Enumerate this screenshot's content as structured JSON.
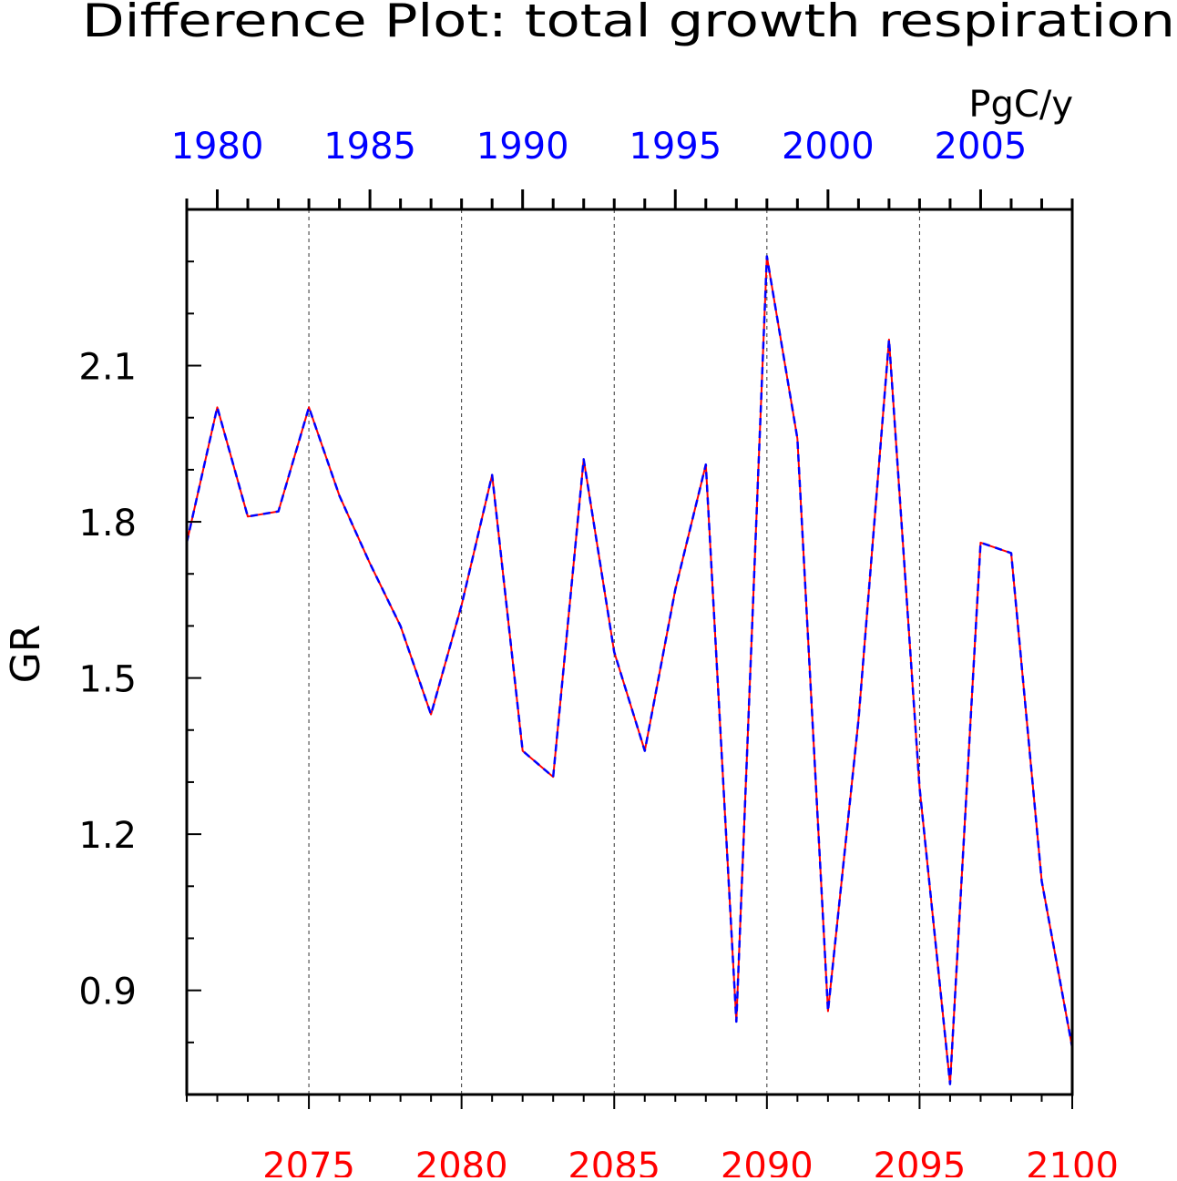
{
  "chart_data": {
    "type": "line",
    "title": "Difference Plot: total growth respiration",
    "units": "PgC/y",
    "ylabel": "GR",
    "ylim": [
      0.7,
      2.4
    ],
    "yticks": [
      0.9,
      1.2,
      1.5,
      1.8,
      2.1
    ],
    "ytick_labels": [
      "0.9",
      "1.2",
      "1.5",
      "1.8",
      "2.1"
    ],
    "bottom_axis": {
      "color": "#ff0000",
      "range": [
        2071,
        2100
      ],
      "ticks": [
        2075,
        2080,
        2085,
        2090,
        2095,
        2100
      ],
      "tick_labels": [
        "2075",
        "2080",
        "2085",
        "2090",
        "2095",
        "2100"
      ]
    },
    "top_axis": {
      "color": "#0000ff",
      "range": [
        1979,
        2008
      ],
      "ticks": [
        1980,
        1985,
        1990,
        1995,
        2000,
        2005
      ],
      "tick_labels": [
        "1980",
        "1985",
        "1990",
        "1995",
        "2000",
        "2005"
      ]
    },
    "grid": "vertical dashed at major bottom ticks",
    "x": [
      2071,
      2072,
      2073,
      2074,
      2075,
      2076,
      2077,
      2078,
      2079,
      2080,
      2081,
      2082,
      2083,
      2084,
      2085,
      2086,
      2087,
      2088,
      2089,
      2090,
      2091,
      2092,
      2093,
      2094,
      2095,
      2096,
      2097,
      2098,
      2099,
      2100
    ],
    "series": [
      {
        "color": "#ff0000",
        "style": "solid",
        "values": [
          1.76,
          2.02,
          1.81,
          1.82,
          2.02,
          1.85,
          1.72,
          1.6,
          1.43,
          1.64,
          1.89,
          1.36,
          1.31,
          1.92,
          1.55,
          1.36,
          1.67,
          1.91,
          0.84,
          2.31,
          1.96,
          0.86,
          1.42,
          2.15,
          1.29,
          0.72,
          1.76,
          1.74,
          1.11,
          0.79
        ]
      },
      {
        "color": "#0000ff",
        "style": "dashed",
        "values": [
          1.76,
          2.02,
          1.81,
          1.82,
          2.02,
          1.85,
          1.72,
          1.6,
          1.43,
          1.64,
          1.89,
          1.36,
          1.31,
          1.92,
          1.55,
          1.36,
          1.67,
          1.91,
          0.84,
          2.31,
          1.96,
          0.86,
          1.42,
          2.15,
          1.29,
          0.72,
          1.76,
          1.74,
          1.11,
          0.79
        ]
      }
    ]
  }
}
